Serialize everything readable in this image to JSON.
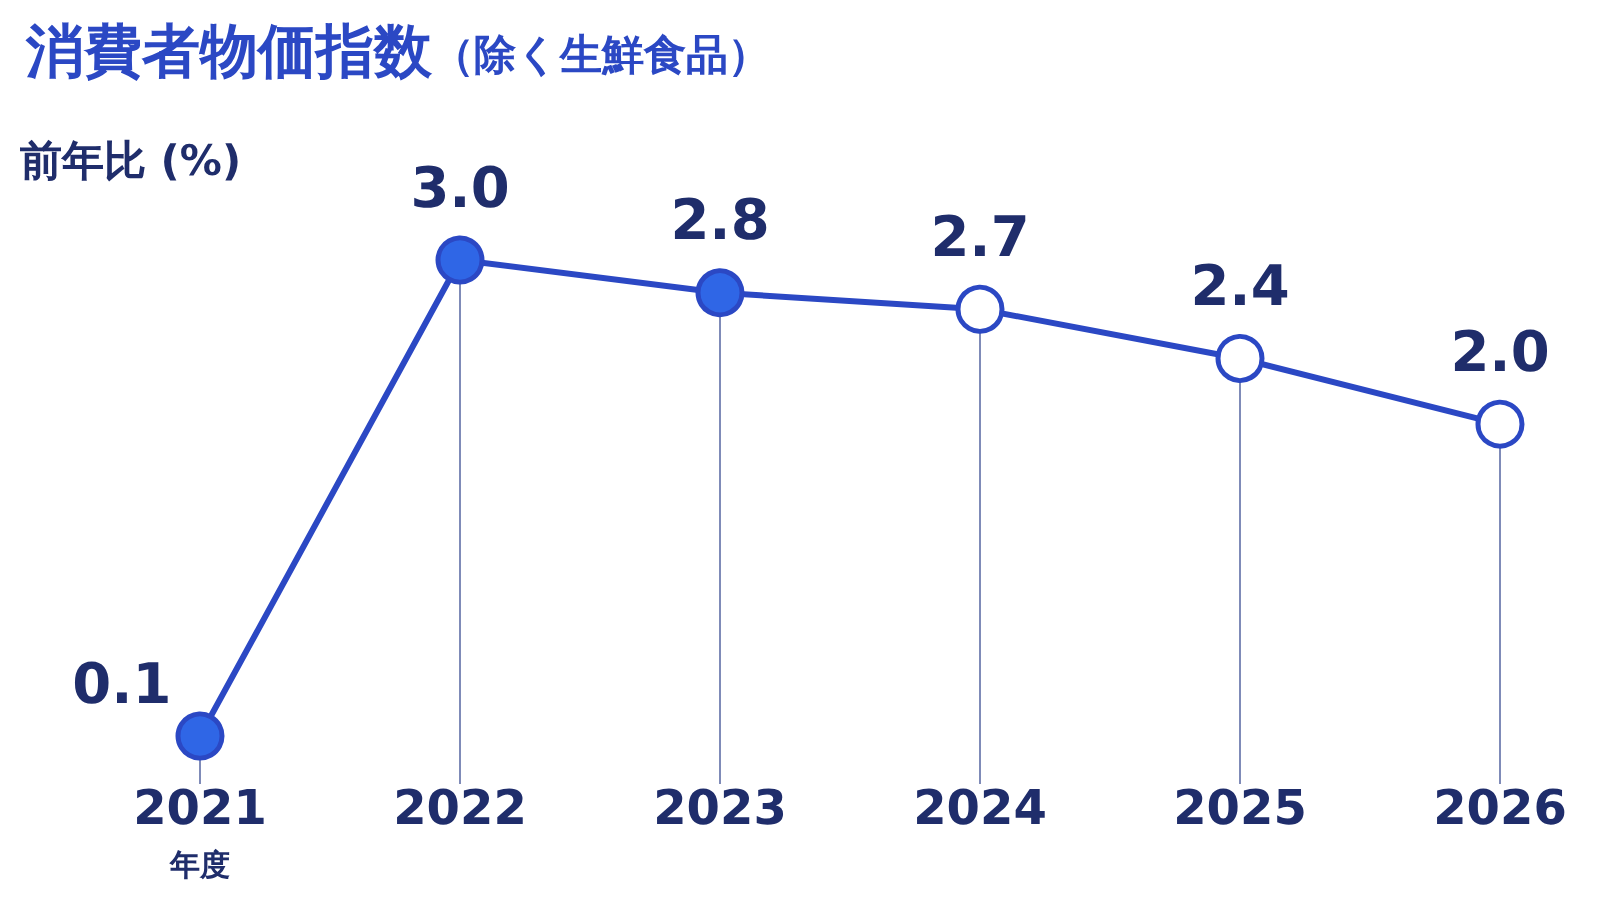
{
  "chart_data": {
    "type": "line",
    "title": "消費者物価指数",
    "subtitle": "（除く生鮮食品）",
    "ylabel": "前年比 (%)",
    "xlabel": "年度",
    "categories": [
      "2021",
      "2022",
      "2023",
      "2024",
      "2025",
      "2026"
    ],
    "values": [
      0.1,
      3.0,
      2.8,
      2.7,
      2.4,
      2.0
    ],
    "value_labels": [
      "0.1",
      "3.0",
      "2.8",
      "2.7",
      "2.4",
      "2.0"
    ],
    "color": "#2b48c4",
    "colors": [
      "#2f66e6",
      "#2f66e6",
      "#2f66e6",
      "#ffffff",
      "#ffffff",
      "#ffffff"
    ],
    "marker": "circle",
    "line_style": "solid",
    "grid": "x"
  }
}
